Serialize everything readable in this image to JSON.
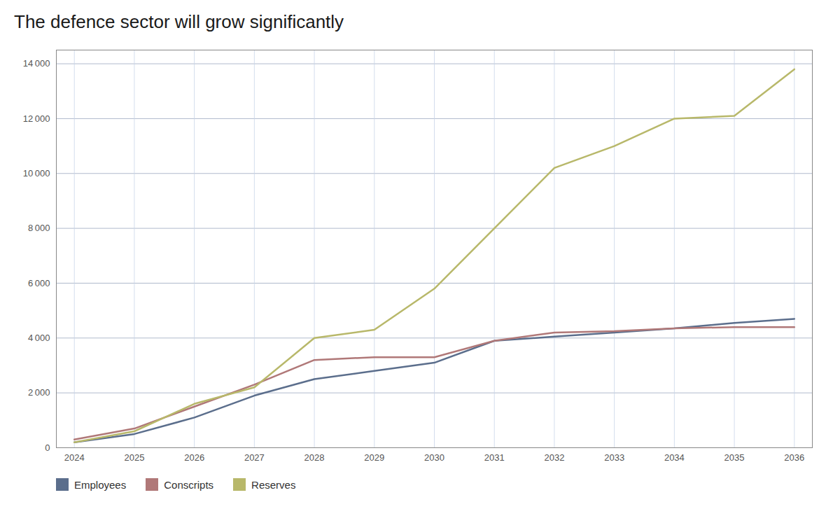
{
  "chart_data": {
    "type": "line",
    "title": "The defence sector will grow significantly",
    "x": [
      2024,
      2025,
      2026,
      2027,
      2028,
      2029,
      2030,
      2031,
      2032,
      2033,
      2034,
      2035,
      2036
    ],
    "series": [
      {
        "name": "Employees",
        "color": "#5b6e8c",
        "values": [
          200,
          500,
          1100,
          1900,
          2500,
          2800,
          3100,
          3900,
          4050,
          4200,
          4350,
          4550,
          4700
        ]
      },
      {
        "name": "Conscripts",
        "color": "#b07878",
        "values": [
          300,
          700,
          1500,
          2300,
          3200,
          3300,
          3300,
          3900,
          4200,
          4250,
          4350,
          4400,
          4400
        ]
      },
      {
        "name": "Reserves",
        "color": "#b8b86a",
        "values": [
          200,
          600,
          1600,
          2200,
          4000,
          4300,
          5800,
          8000,
          10200,
          11000,
          12000,
          12100,
          13800
        ]
      }
    ],
    "xlim": [
      2023.7,
      2036.3
    ],
    "xticks": [
      2024,
      2025,
      2026,
      2027,
      2028,
      2029,
      2030,
      2031,
      2032,
      2033,
      2034,
      2035,
      2036
    ],
    "ylim": [
      0,
      14500
    ],
    "yticks": [
      0,
      {
        "value": 2000,
        "label": "2 000"
      },
      {
        "value": 4000,
        "label": "4 000"
      },
      {
        "value": 6000,
        "label": "6 000"
      },
      {
        "value": 8000,
        "label": "8 000"
      },
      {
        "value": 10000,
        "label": "10 000"
      },
      {
        "value": 12000,
        "label": "12 000"
      },
      {
        "value": 14000,
        "label": "14 000"
      }
    ],
    "grid": true,
    "legend": "bottom"
  }
}
